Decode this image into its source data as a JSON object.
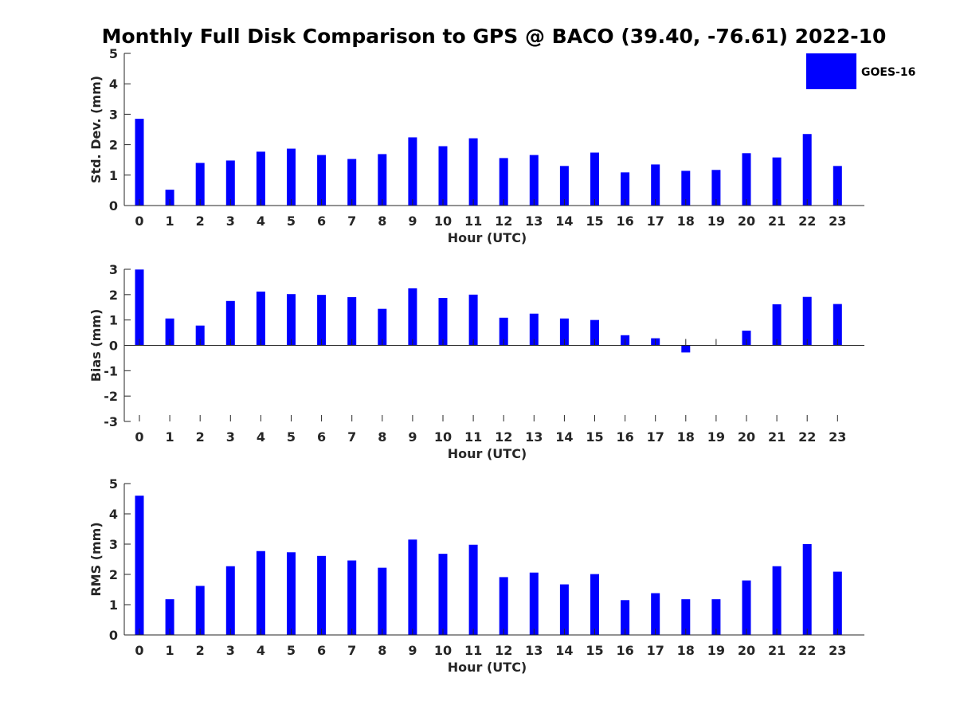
{
  "title": "Monthly Full Disk Comparison to GPS @ BACO (39.40, -76.61) 2022-10",
  "legend": {
    "label": "GOES-16",
    "color": "#0000ff",
    "placement": "top-right"
  },
  "chart_data": [
    {
      "type": "bar",
      "xlabel": "Hour (UTC)",
      "ylabel": "Std. Dev. (mm)",
      "ylim": [
        0,
        5
      ],
      "yticks": [
        "0",
        "1",
        "2",
        "3",
        "4",
        "5"
      ],
      "categories": [
        "0",
        "1",
        "2",
        "3",
        "4",
        "5",
        "6",
        "7",
        "8",
        "9",
        "10",
        "11",
        "12",
        "13",
        "14",
        "15",
        "16",
        "17",
        "18",
        "19",
        "20",
        "21",
        "22",
        "23"
      ],
      "series": [
        {
          "name": "GOES-16",
          "color": "#0000ff",
          "values": [
            2.85,
            0.52,
            1.4,
            1.48,
            1.77,
            1.87,
            1.66,
            1.53,
            1.69,
            2.24,
            1.95,
            2.21,
            1.56,
            1.66,
            1.3,
            1.74,
            1.09,
            1.35,
            1.14,
            1.17,
            1.72,
            1.58,
            2.35,
            1.3
          ]
        }
      ],
      "grid": false
    },
    {
      "type": "bar",
      "xlabel": "Hour (UTC)",
      "ylabel": "Bias (mm)",
      "ylim": [
        -3,
        3
      ],
      "yticks": [
        "-3",
        "-2",
        "-1",
        "0",
        "1",
        "2",
        "3"
      ],
      "categories": [
        "0",
        "1",
        "2",
        "3",
        "4",
        "5",
        "6",
        "7",
        "8",
        "9",
        "10",
        "11",
        "12",
        "13",
        "14",
        "15",
        "16",
        "17",
        "18",
        "19",
        "20",
        "21",
        "22",
        "23"
      ],
      "series": [
        {
          "name": "GOES-16",
          "color": "#0000ff",
          "values": [
            2.99,
            1.06,
            0.78,
            1.75,
            2.12,
            2.02,
            1.99,
            1.9,
            1.44,
            2.25,
            1.87,
            2.0,
            1.09,
            1.25,
            1.06,
            1.0,
            0.4,
            0.28,
            -0.28,
            0.0,
            0.58,
            1.62,
            1.91,
            1.63
          ]
        }
      ],
      "grid": false
    },
    {
      "type": "bar",
      "xlabel": "Hour (UTC)",
      "ylabel": "RMS (mm)",
      "ylim": [
        0,
        5
      ],
      "yticks": [
        "0",
        "1",
        "2",
        "3",
        "4",
        "5"
      ],
      "categories": [
        "0",
        "1",
        "2",
        "3",
        "4",
        "5",
        "6",
        "7",
        "8",
        "9",
        "10",
        "11",
        "12",
        "13",
        "14",
        "15",
        "16",
        "17",
        "18",
        "19",
        "20",
        "21",
        "22",
        "23"
      ],
      "series": [
        {
          "name": "GOES-16",
          "color": "#0000ff",
          "values": [
            4.6,
            1.18,
            1.62,
            2.27,
            2.77,
            2.73,
            2.61,
            2.46,
            2.22,
            3.15,
            2.68,
            2.98,
            1.91,
            2.06,
            1.67,
            2.01,
            1.15,
            1.38,
            1.18,
            1.18,
            1.8,
            2.27,
            3.0,
            2.09
          ]
        }
      ],
      "grid": false
    }
  ]
}
